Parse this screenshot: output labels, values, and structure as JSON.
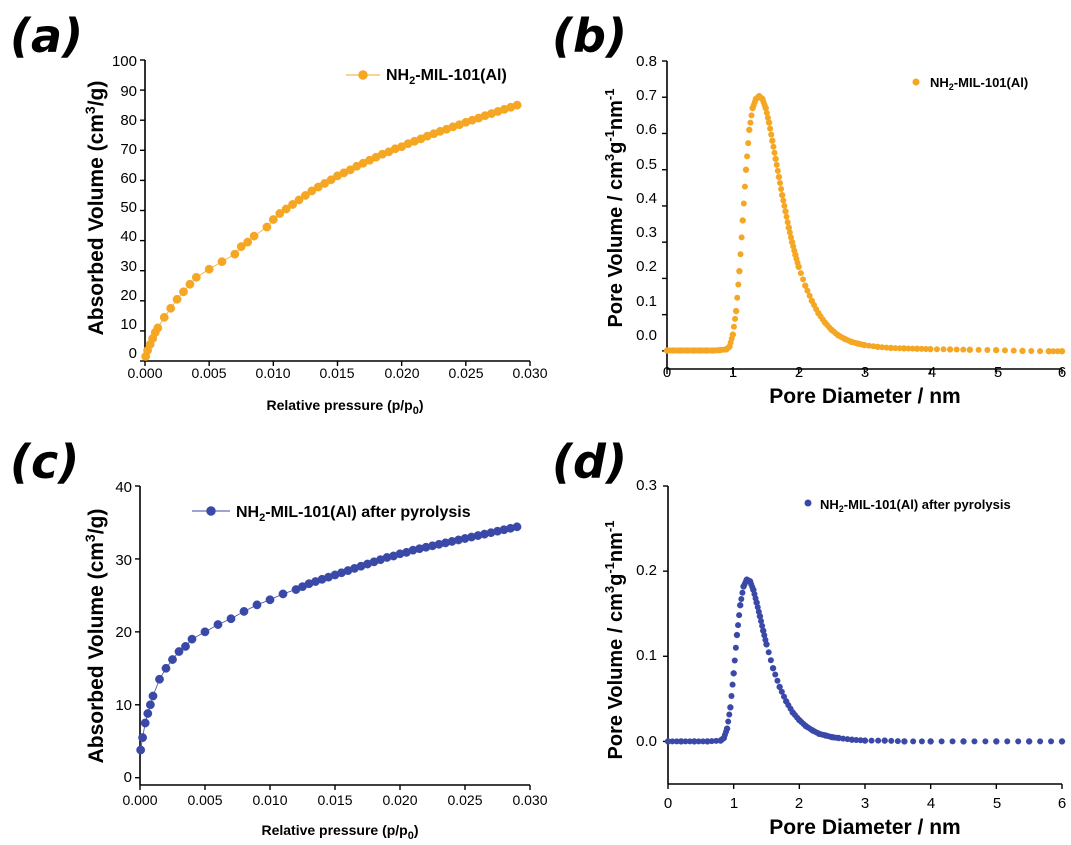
{
  "chart_data": [
    {
      "panel": "(a)",
      "type": "line",
      "xlabel": "Relative pressure (p/p0)",
      "ylabel": "Absorbed Volume (cm3/g)",
      "xlim": [
        0,
        0.03
      ],
      "ylim": [
        0,
        100
      ],
      "xticks": [
        "0.000",
        "0.005",
        "0.010",
        "0.015",
        "0.020",
        "0.025",
        "0.030"
      ],
      "yticks": [
        "0",
        "10",
        "20",
        "30",
        "40",
        "50",
        "60",
        "70",
        "80",
        "90",
        "100"
      ],
      "legend_position": "top-right",
      "marker": "sphere",
      "series": [
        {
          "name": "NH2-MIL-101(Al)",
          "color": "#f5a623",
          "x": [
            5e-05,
            0.0002,
            0.0004,
            0.0006,
            0.0008,
            0.001,
            0.0015,
            0.002,
            0.0025,
            0.003,
            0.0035,
            0.004,
            0.005,
            0.006,
            0.007,
            0.0075,
            0.008,
            0.0085,
            0.0095,
            0.01,
            0.0105,
            0.011,
            0.0115,
            0.012,
            0.0125,
            0.013,
            0.0135,
            0.014,
            0.0145,
            0.015,
            0.0155,
            0.016,
            0.0165,
            0.017,
            0.0175,
            0.018,
            0.0185,
            0.019,
            0.0195,
            0.02,
            0.0205,
            0.021,
            0.0215,
            0.022,
            0.0225,
            0.023,
            0.0235,
            0.024,
            0.0245,
            0.025,
            0.0255,
            0.026,
            0.0265,
            0.027,
            0.0275,
            0.028,
            0.0285,
            0.029
          ],
          "y": [
            1.5,
            3.5,
            5.5,
            7.5,
            9.5,
            11.0,
            14.5,
            17.5,
            20.5,
            23.0,
            25.5,
            27.8,
            30.5,
            33.0,
            35.5,
            38.0,
            39.5,
            41.5,
            44.5,
            47.0,
            49.0,
            50.5,
            52.0,
            53.5,
            55.0,
            56.5,
            57.8,
            59.0,
            60.2,
            61.5,
            62.5,
            63.5,
            64.7,
            65.7,
            66.7,
            67.7,
            68.7,
            69.5,
            70.5,
            71.2,
            72.2,
            73.0,
            73.8,
            74.7,
            75.5,
            76.3,
            77.0,
            77.8,
            78.5,
            79.3,
            80.0,
            80.7,
            81.5,
            82.2,
            82.9,
            83.6,
            84.3,
            85.0
          ]
        }
      ]
    },
    {
      "panel": "(b)",
      "type": "scatter",
      "xlabel": "Pore Diameter / nm",
      "ylabel": "Pore Volume / cm3g-1nm-1",
      "xlim": [
        0,
        6
      ],
      "ylim": [
        -0.05,
        0.8
      ],
      "xticks": [
        "0",
        "1",
        "2",
        "3",
        "4",
        "5",
        "6"
      ],
      "yticks": [
        "0.0",
        "0.1",
        "0.2",
        "0.3",
        "0.4",
        "0.5",
        "0.6",
        "0.7",
        "0.8"
      ],
      "legend_position": "top-right",
      "series": [
        {
          "name": "NH2-MIL-101(Al)",
          "color": "#f5a623",
          "x": [
            0.0,
            0.1,
            0.2,
            0.3,
            0.4,
            0.5,
            0.6,
            0.7,
            0.8,
            0.9,
            0.95,
            1.0,
            1.05,
            1.1,
            1.15,
            1.2,
            1.25,
            1.3,
            1.35,
            1.4,
            1.45,
            1.5,
            1.55,
            1.6,
            1.65,
            1.7,
            1.75,
            1.8,
            1.85,
            1.9,
            1.95,
            2.0,
            2.1,
            2.2,
            2.3,
            2.4,
            2.5,
            2.6,
            2.7,
            2.8,
            2.9,
            3.0,
            3.2,
            3.4,
            3.6,
            3.8,
            4.0,
            4.3,
            4.6,
            5.0,
            5.4,
            5.8,
            6.0
          ],
          "y": [
            0.001,
            0.001,
            0.001,
            0.001,
            0.001,
            0.001,
            0.001,
            0.001,
            0.002,
            0.004,
            0.012,
            0.045,
            0.11,
            0.22,
            0.36,
            0.5,
            0.61,
            0.67,
            0.695,
            0.703,
            0.695,
            0.67,
            0.63,
            0.58,
            0.53,
            0.48,
            0.43,
            0.385,
            0.34,
            0.3,
            0.265,
            0.232,
            0.18,
            0.138,
            0.104,
            0.078,
            0.058,
            0.043,
            0.033,
            0.025,
            0.02,
            0.016,
            0.011,
            0.008,
            0.007,
            0.006,
            0.005,
            0.004,
            0.003,
            0.002,
            0.0,
            -0.001,
            -0.001
          ]
        }
      ]
    },
    {
      "panel": "(c)",
      "type": "line",
      "xlabel": "Relative pressure (p/p0)",
      "ylabel": "Absorbed Volume (cm3/g)",
      "xlim": [
        0,
        0.03
      ],
      "ylim": [
        -1,
        40
      ],
      "xticks": [
        "0.000",
        "0.005",
        "0.010",
        "0.015",
        "0.020",
        "0.025",
        "0.030"
      ],
      "yticks": [
        "0",
        "10",
        "20",
        "30",
        "40"
      ],
      "legend_position": "top-right",
      "marker": "sphere",
      "series": [
        {
          "name": "NH2-MIL-101(Al) after pyrolysis",
          "color": "#3a48a8",
          "x": [
            5e-05,
            0.0002,
            0.0004,
            0.0006,
            0.0008,
            0.001,
            0.0015,
            0.002,
            0.0025,
            0.003,
            0.0035,
            0.004,
            0.005,
            0.006,
            0.007,
            0.008,
            0.009,
            0.01,
            0.011,
            0.012,
            0.0125,
            0.013,
            0.0135,
            0.014,
            0.0145,
            0.015,
            0.0155,
            0.016,
            0.0165,
            0.017,
            0.0175,
            0.018,
            0.0185,
            0.019,
            0.0195,
            0.02,
            0.0205,
            0.021,
            0.0215,
            0.022,
            0.0225,
            0.023,
            0.0235,
            0.024,
            0.0245,
            0.025,
            0.0255,
            0.026,
            0.0265,
            0.027,
            0.0275,
            0.028,
            0.0285,
            0.029
          ],
          "y": [
            3.8,
            5.5,
            7.5,
            8.8,
            10.0,
            11.2,
            13.5,
            15.0,
            16.2,
            17.3,
            18.0,
            19.0,
            20.0,
            21.0,
            21.8,
            22.8,
            23.7,
            24.4,
            25.2,
            25.8,
            26.2,
            26.6,
            26.9,
            27.2,
            27.5,
            27.8,
            28.1,
            28.4,
            28.7,
            29.0,
            29.3,
            29.6,
            29.9,
            30.2,
            30.4,
            30.7,
            30.9,
            31.2,
            31.4,
            31.6,
            31.8,
            32.0,
            32.2,
            32.4,
            32.6,
            32.8,
            33.0,
            33.2,
            33.4,
            33.6,
            33.8,
            34.0,
            34.2,
            34.4
          ]
        }
      ]
    },
    {
      "panel": "(d)",
      "type": "scatter",
      "xlabel": "Pore Diameter / nm",
      "ylabel": "Pore Volume / cm3g-1nm-1",
      "xlim": [
        0,
        6
      ],
      "ylim": [
        -0.05,
        0.3
      ],
      "xticks": [
        "0",
        "1",
        "2",
        "3",
        "4",
        "5",
        "6"
      ],
      "yticks": [
        "0.0",
        "0.1",
        "0.2",
        "0.3"
      ],
      "legend_position": "top-right",
      "series": [
        {
          "name": "NH2-MIL-101(Al) after pyrolysis",
          "color": "#3a48a8",
          "x": [
            0.0,
            0.2,
            0.4,
            0.6,
            0.8,
            0.85,
            0.9,
            0.95,
            1.0,
            1.05,
            1.1,
            1.15,
            1.2,
            1.25,
            1.3,
            1.35,
            1.4,
            1.45,
            1.5,
            1.6,
            1.7,
            1.8,
            1.9,
            2.0,
            2.1,
            2.2,
            2.3,
            2.4,
            2.5,
            2.6,
            2.8,
            3.0,
            3.3,
            3.6,
            4.0,
            4.5,
            5.0,
            5.5,
            6.0
          ],
          "y": [
            0.0,
            0.0,
            0.0,
            0.0,
            0.001,
            0.004,
            0.015,
            0.04,
            0.08,
            0.125,
            0.16,
            0.182,
            0.19,
            0.188,
            0.178,
            0.163,
            0.147,
            0.13,
            0.114,
            0.086,
            0.064,
            0.047,
            0.034,
            0.025,
            0.018,
            0.013,
            0.009,
            0.007,
            0.005,
            0.004,
            0.002,
            0.001,
            0.001,
            0.0,
            0.0,
            0.0,
            0.0,
            0.0,
            0.0
          ]
        }
      ]
    }
  ]
}
